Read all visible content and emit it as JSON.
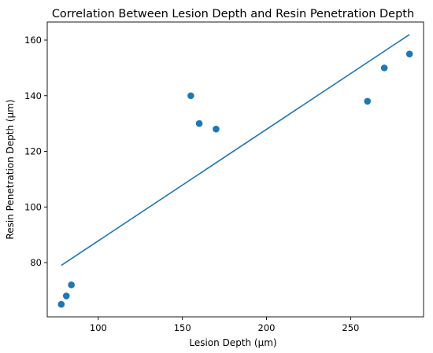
{
  "chart_data": {
    "type": "scatter",
    "title": "Correlation Between Lesion Depth and Resin Penetration Depth",
    "xlabel": "Lesion Depth (µm)",
    "ylabel": "Resin Penetration Depth (µm)",
    "xlim": [
      69.65,
      293.35
    ],
    "ylim": [
      60.5,
      166.5
    ],
    "x_ticks": [
      100,
      150,
      200,
      250
    ],
    "y_ticks": [
      80,
      100,
      120,
      140,
      160
    ],
    "grid": false,
    "legend": "none",
    "colors": {
      "points": "#1f77b4",
      "line": "#1f77b4"
    },
    "series": [
      {
        "type": "scatter",
        "x": [
          78,
          81,
          84,
          155,
          160,
          170,
          260,
          270,
          285
        ],
        "y": [
          65,
          68,
          72,
          140,
          130,
          128,
          138,
          150,
          155
        ]
      },
      {
        "type": "line",
        "x": [
          78,
          285
        ],
        "y": [
          79,
          162
        ]
      }
    ]
  }
}
